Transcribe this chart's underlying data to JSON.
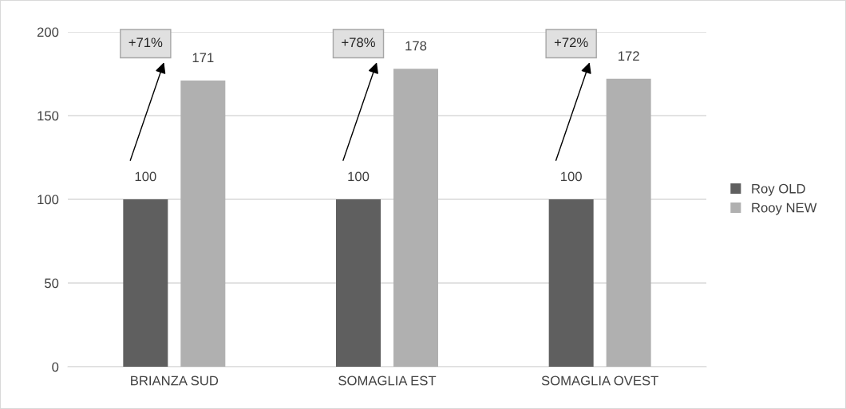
{
  "chart_data": {
    "type": "bar",
    "categories": [
      "BRIANZA SUD",
      "SOMAGLIA EST",
      "SOMAGLIA OVEST"
    ],
    "series": [
      {
        "name": "Roy OLD",
        "color": "#5f5f5f",
        "values": [
          100,
          100,
          100
        ]
      },
      {
        "name": "Rooy NEW",
        "color": "#b0b0b0",
        "values": [
          171,
          178,
          172
        ]
      }
    ],
    "ylim": [
      0,
      200
    ],
    "yticks": [
      0,
      50,
      100,
      150,
      200
    ],
    "grid": "y",
    "legend": "right",
    "data_labels": true,
    "annotations": [
      "+71%",
      "+78%",
      "+72%"
    ]
  }
}
